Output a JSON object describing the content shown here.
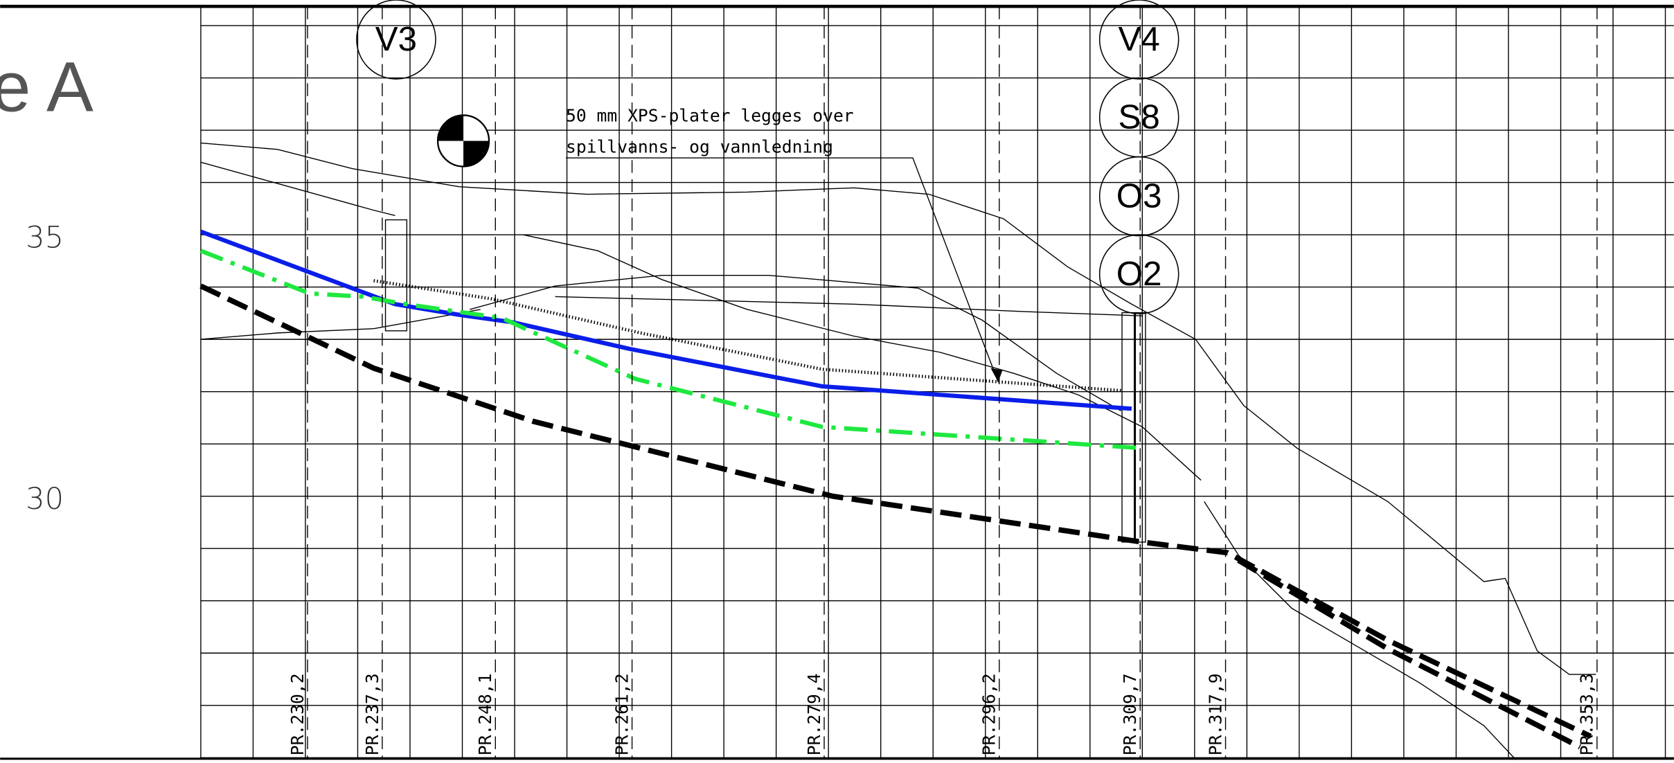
{
  "title": "e A",
  "elevations": [
    "35",
    "30"
  ],
  "markers": [
    "V3",
    "V4",
    "S8",
    "O3",
    "O2"
  ],
  "annotation": [
    "50 mm XPS-plater legges over",
    "spillvanns- og vannledning"
  ],
  "profiles": [
    "PR.230,2",
    "PR.237,3",
    "PR.248,1",
    "PR.261,2",
    "PR.279,4",
    "PR.296,2",
    "PR.309,7",
    "PR.317,9",
    "PR.353,3"
  ]
}
